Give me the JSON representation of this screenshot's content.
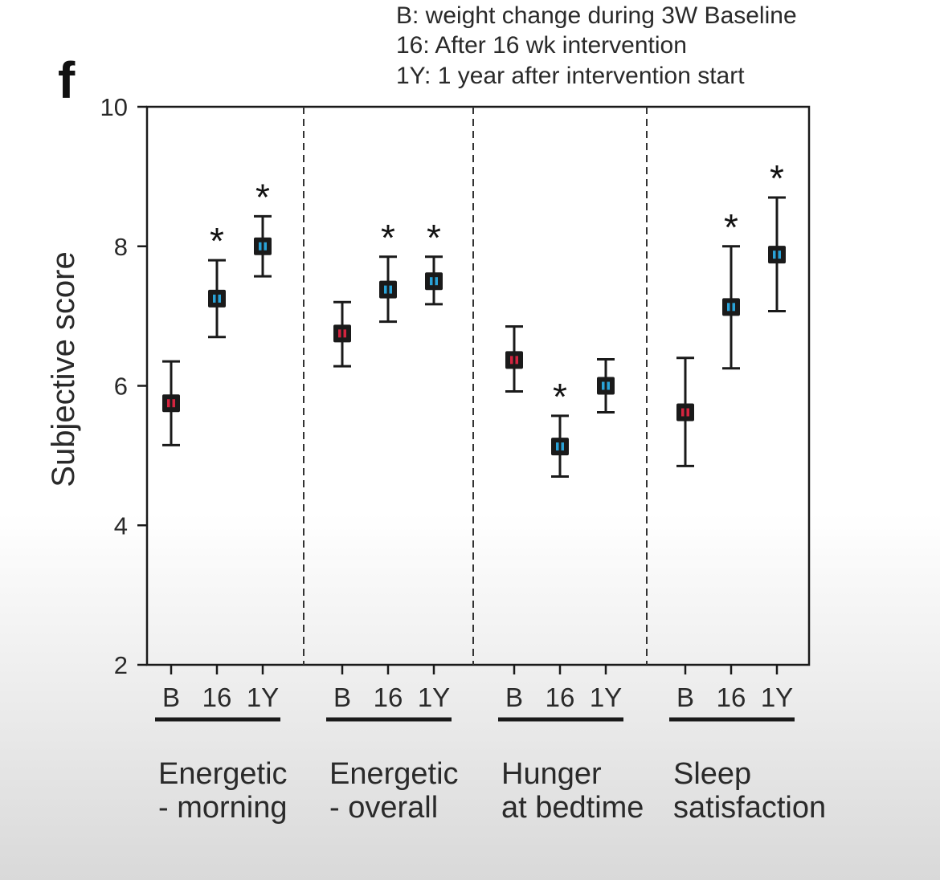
{
  "chart_data": {
    "type": "scatter",
    "panel_letter": "f",
    "ylabel": "Subjective score",
    "ylim": [
      2,
      10
    ],
    "yticks": [
      2,
      4,
      6,
      8,
      10
    ],
    "legend": [
      "B: weight change during 3W Baseline",
      "16: After 16 wk intervention",
      "1Y: 1 year after  intervention start"
    ],
    "colors": {
      "baseline": "#d4243f",
      "intervention": "#2aa3d8",
      "marker_border": "#1a1a1a"
    },
    "groups": [
      {
        "label_lines": [
          "Energetic",
          "- morning"
        ],
        "points": [
          {
            "cat": "B",
            "mean": 5.75,
            "low": 5.15,
            "high": 6.35,
            "sig": ""
          },
          {
            "cat": "16",
            "mean": 7.25,
            "low": 6.7,
            "high": 7.8,
            "sig": "*"
          },
          {
            "cat": "1Y",
            "mean": 8.0,
            "low": 7.57,
            "high": 8.43,
            "sig": "*"
          }
        ]
      },
      {
        "label_lines": [
          "Energetic",
          "- overall"
        ],
        "points": [
          {
            "cat": "B",
            "mean": 6.75,
            "low": 6.28,
            "high": 7.2,
            "sig": ""
          },
          {
            "cat": "16",
            "mean": 7.38,
            "low": 6.92,
            "high": 7.85,
            "sig": "*"
          },
          {
            "cat": "1Y",
            "mean": 7.5,
            "low": 7.17,
            "high": 7.85,
            "sig": "*"
          }
        ]
      },
      {
        "label_lines": [
          "Hunger",
          "at bedtime"
        ],
        "points": [
          {
            "cat": "B",
            "mean": 6.37,
            "low": 5.92,
            "high": 6.85,
            "sig": ""
          },
          {
            "cat": "16",
            "mean": 5.13,
            "low": 4.7,
            "high": 5.57,
            "sig": "*"
          },
          {
            "cat": "1Y",
            "mean": 6.0,
            "low": 5.62,
            "high": 6.38,
            "sig": ""
          }
        ]
      },
      {
        "label_lines": [
          "Sleep",
          "satisfaction"
        ],
        "points": [
          {
            "cat": "B",
            "mean": 5.62,
            "low": 4.85,
            "high": 6.4,
            "sig": ""
          },
          {
            "cat": "16",
            "mean": 7.13,
            "low": 6.25,
            "high": 8.0,
            "sig": "*"
          },
          {
            "cat": "1Y",
            "mean": 7.88,
            "low": 7.07,
            "high": 8.7,
            "sig": "*"
          }
        ]
      }
    ]
  }
}
